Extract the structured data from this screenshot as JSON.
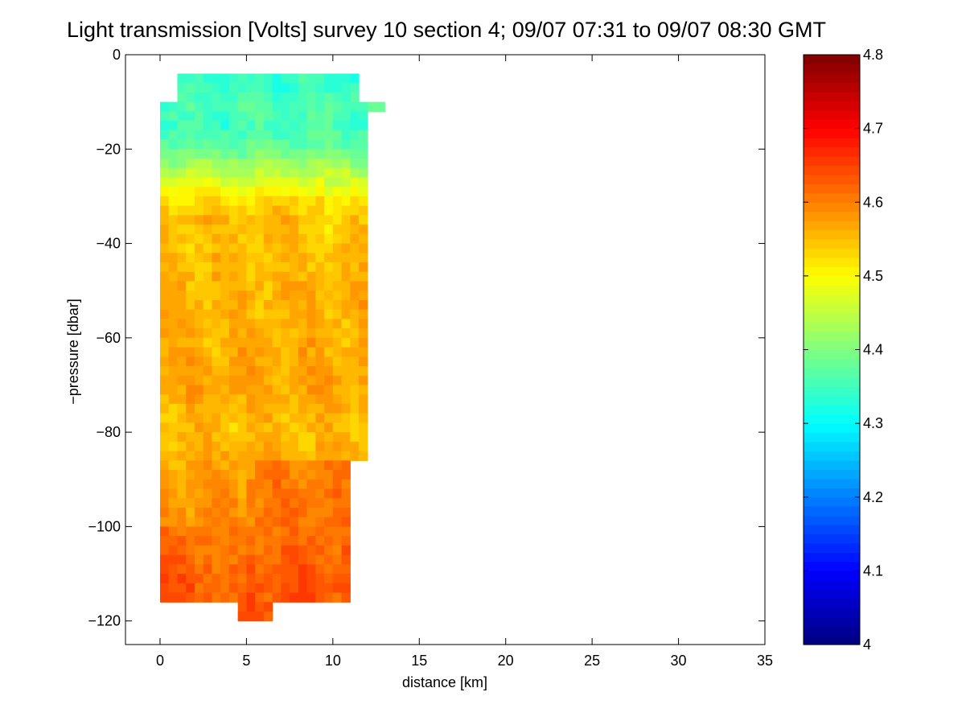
{
  "chart_data": {
    "type": "heatmap",
    "title": "Light transmission [Volts] survey 10 section 4; 09/07 07:31 to 09/07 08:30 GMT",
    "xlabel": "distance [km]",
    "ylabel": "−pressure [dbar]",
    "xlim": [
      -2,
      35
    ],
    "ylim": [
      -125,
      0
    ],
    "xticks": [
      0,
      5,
      10,
      15,
      20,
      25,
      30,
      35
    ],
    "yticks": [
      0,
      -20,
      -40,
      -60,
      -80,
      -100,
      -120
    ],
    "ytick_labels": [
      "0",
      "−20",
      "−40",
      "−60",
      "−80",
      "−100",
      "−120"
    ],
    "colorbar": {
      "min": 4.0,
      "max": 4.8,
      "ticks": [
        4,
        4.1,
        4.2,
        4.3,
        4.4,
        4.5,
        4.6,
        4.7,
        4.8
      ],
      "tick_labels": [
        "4",
        "4.1",
        "4.2",
        "4.3",
        "4.4",
        "4.5",
        "4.6",
        "4.7",
        "4.8"
      ],
      "colormap": "jet",
      "levels": 64
    },
    "grid": false,
    "data_extent": {
      "x_range_km": [
        0,
        13
      ],
      "pressure_range_dbar": [
        -118,
        -5
      ]
    },
    "value_profile": [
      {
        "pressure": -5,
        "value": 4.34
      },
      {
        "pressure": -10,
        "value": 4.36
      },
      {
        "pressure": -15,
        "value": 4.35
      },
      {
        "pressure": -20,
        "value": 4.38
      },
      {
        "pressure": -25,
        "value": 4.45
      },
      {
        "pressure": -30,
        "value": 4.52
      },
      {
        "pressure": -35,
        "value": 4.55
      },
      {
        "pressure": -40,
        "value": 4.55
      },
      {
        "pressure": -50,
        "value": 4.56
      },
      {
        "pressure": -60,
        "value": 4.56
      },
      {
        "pressure": -70,
        "value": 4.57
      },
      {
        "pressure": -80,
        "value": 4.55
      },
      {
        "pressure": -90,
        "value": 4.58
      },
      {
        "pressure": -100,
        "value": 4.59
      },
      {
        "pressure": -110,
        "value": 4.61
      },
      {
        "pressure": -118,
        "value": 4.62
      }
    ]
  }
}
